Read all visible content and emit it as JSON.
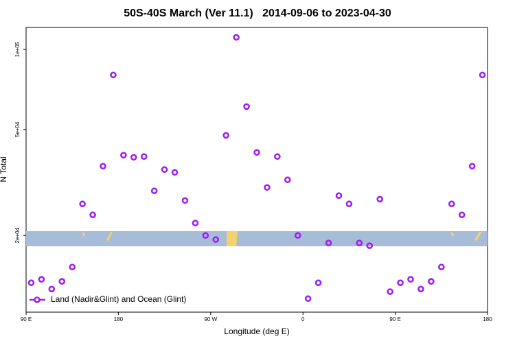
{
  "chart_data": {
    "type": "scatter",
    "title": "50S-40S March (Ver 11.1)   2014-09-06 to 2023-04-30",
    "xlabel": "Longitude (deg E)",
    "ylabel": "N Total",
    "xlim": [
      90,
      540
    ],
    "xticks": [
      {
        "value": 90,
        "label": "90 E"
      },
      {
        "value": 180,
        "label": "180"
      },
      {
        "value": 270,
        "label": "90 W"
      },
      {
        "value": 360,
        "label": "0"
      },
      {
        "value": 450,
        "label": "90 E"
      },
      {
        "value": 540,
        "label": "180"
      }
    ],
    "ylim": [
      10300,
      121000
    ],
    "yscale": "log",
    "yticks": [
      {
        "value": 20000,
        "label": "2e+04"
      },
      {
        "value": 50000,
        "label": "5e+04"
      },
      {
        "value": 100000,
        "label": "1e+05"
      }
    ],
    "legend": "bottom-left",
    "series": [
      {
        "name": "Land (Nadir&Glint) and Ocean (Glint)",
        "color": "#a020f0",
        "x": [
          95,
          105,
          115,
          125,
          135,
          145,
          155,
          165,
          175,
          185,
          195,
          205,
          215,
          225,
          235,
          245,
          255,
          265,
          275,
          285,
          295,
          305,
          315,
          325,
          335,
          345,
          355,
          365,
          375,
          385,
          395,
          405,
          415,
          425,
          435,
          445,
          455,
          465,
          475,
          485,
          495,
          505,
          515,
          525,
          535
        ],
        "values": [
          13280,
          13680,
          12580,
          13440,
          15220,
          26280,
          23900,
          36420,
          80200,
          40060,
          39340,
          39580,
          29420,
          35360,
          34520,
          27060,
          22260,
          20000,
          19300,
          47560,
          111100,
          61020,
          41020,
          30300,
          39580,
          32360,
          20000,
          11580,
          13280,
          18740,
          28220,
          26280,
          18740,
          18300,
          27380,
          12300,
          13280,
          13680,
          12580,
          13440,
          15220,
          26280,
          23900,
          36420,
          80200
        ]
      }
    ]
  }
}
